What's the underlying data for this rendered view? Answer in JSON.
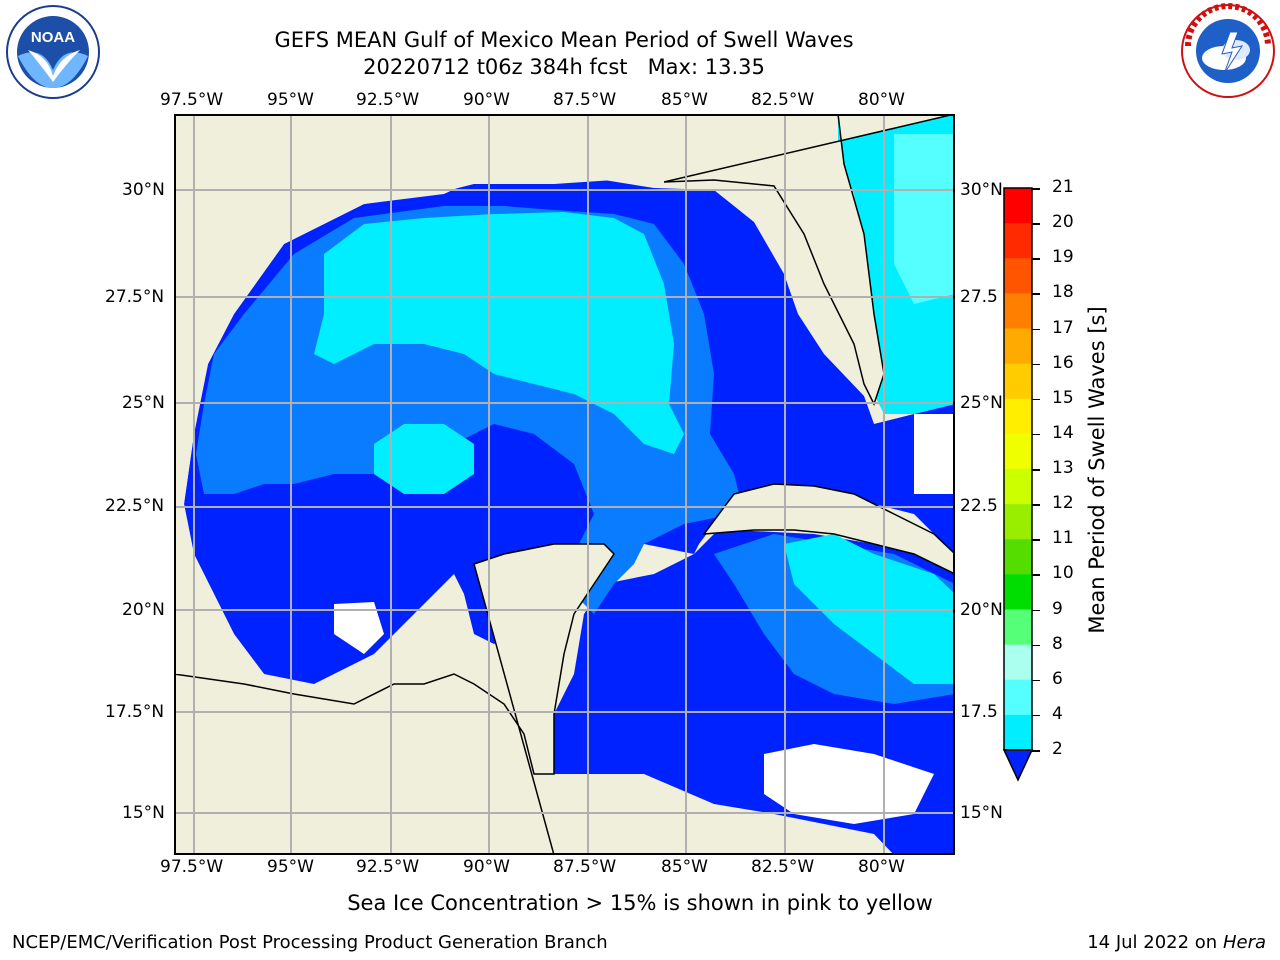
{
  "title_line1": "GEFS MEAN Gulf of Mexico Mean Period of Swell Waves",
  "title_line2": "20220712 t06z 384h fcst   Max: 13.35",
  "lon_labels": [
    "97.5°W",
    "95°W",
    "92.5°W",
    "90°W",
    "87.5°W",
    "85°W",
    "82.5°W",
    "80°W"
  ],
  "lat_labels_left": [
    "30°N",
    "27.5°N",
    "25°N",
    "22.5°N",
    "20°N",
    "17.5°N",
    "15°N"
  ],
  "lat_labels_right": [
    "30°N",
    "27.5",
    "25°N",
    "22.5",
    "20°N",
    "17.5",
    "15°N"
  ],
  "colorbar": {
    "label": "Mean Period of Swell Waves [s]",
    "ticks": [
      "21",
      "20",
      "19",
      "18",
      "17",
      "16",
      "15",
      "14",
      "13",
      "12",
      "11",
      "10",
      "9",
      "8",
      "6",
      "4",
      "2"
    ],
    "colors": [
      "#ff0000",
      "#ff2a00",
      "#ff5500",
      "#ff7f00",
      "#ffaa00",
      "#ffcc00",
      "#ffee00",
      "#f0ff00",
      "#ccff00",
      "#99ee00",
      "#55dd00",
      "#00dd00",
      "#55ff77",
      "#aaffee",
      "#55ffff",
      "#00eeff",
      "#0088ff",
      "#0022ff"
    ]
  },
  "bottom_note": "Sea Ice Concentration > 15% is shown in pink to yellow",
  "footer_left": "NCEP/EMC/Verification Post Processing Product Generation Branch",
  "footer_right_date": "14 Jul 2022 on ",
  "footer_right_host": "Hera",
  "colors": {
    "land": "#efefdc",
    "deep_blue": "#0022ff",
    "mid_blue": "#0a7cff",
    "cyan": "#00eeff",
    "light_cyan": "#5ff",
    "green": "#33dd00"
  }
}
